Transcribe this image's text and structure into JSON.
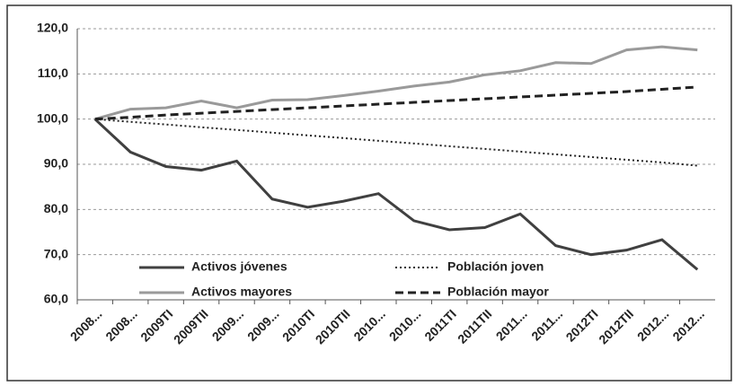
{
  "chart_data": {
    "type": "line",
    "categories": [
      "2008...",
      "2008...",
      "2009TI",
      "2009TII",
      "2009...",
      "2009...",
      "2010TI",
      "2010TII",
      "2010...",
      "2010...",
      "2011TI",
      "2011TII",
      "2011...",
      "2011...",
      "2012TI",
      "2012TII",
      "2012...",
      "2012..."
    ],
    "series": [
      {
        "name": "Activos jóvenes",
        "color": "#404040",
        "style": "solid",
        "values": [
          100,
          92.7,
          89.5,
          88.7,
          90.7,
          82.3,
          80.5,
          81.8,
          83.5,
          77.5,
          75.5,
          76,
          79,
          72,
          70,
          71,
          73.3,
          66.7
        ]
      },
      {
        "name": "Población joven",
        "color": "#222222",
        "style": "dotted",
        "values": [
          100,
          99.4,
          98.8,
          98.2,
          97.6,
          97,
          96.4,
          95.8,
          95.2,
          94.6,
          94,
          93.4,
          92.8,
          92.2,
          91.6,
          91,
          90.4,
          89.7
        ]
      },
      {
        "name": "Activos mayores",
        "color": "#9a9a9a",
        "style": "solid",
        "values": [
          100,
          102.2,
          102.5,
          104,
          102.5,
          104.2,
          104.3,
          105.2,
          106.2,
          107.3,
          108.2,
          109.8,
          110.7,
          112.5,
          112.3,
          115.3,
          116,
          115.3
        ]
      },
      {
        "name": "Población mayor",
        "color": "#222222",
        "style": "dashed",
        "values": [
          100,
          100.4,
          100.9,
          101.3,
          101.7,
          102.1,
          102.5,
          102.9,
          103.3,
          103.7,
          104.1,
          104.5,
          104.9,
          105.3,
          105.7,
          106.1,
          106.6,
          107.1
        ]
      }
    ],
    "ylim": [
      60,
      120
    ],
    "yticks": [
      {
        "value": 60,
        "label": "60,0"
      },
      {
        "value": 70,
        "label": "70,0"
      },
      {
        "value": 80,
        "label": "80,0"
      },
      {
        "value": 90,
        "label": "90,0"
      },
      {
        "value": 100,
        "label": "100,0"
      },
      {
        "value": 110,
        "label": "110,0"
      },
      {
        "value": 120,
        "label": "120,0"
      }
    ],
    "grid": true,
    "legend": "bottom"
  }
}
